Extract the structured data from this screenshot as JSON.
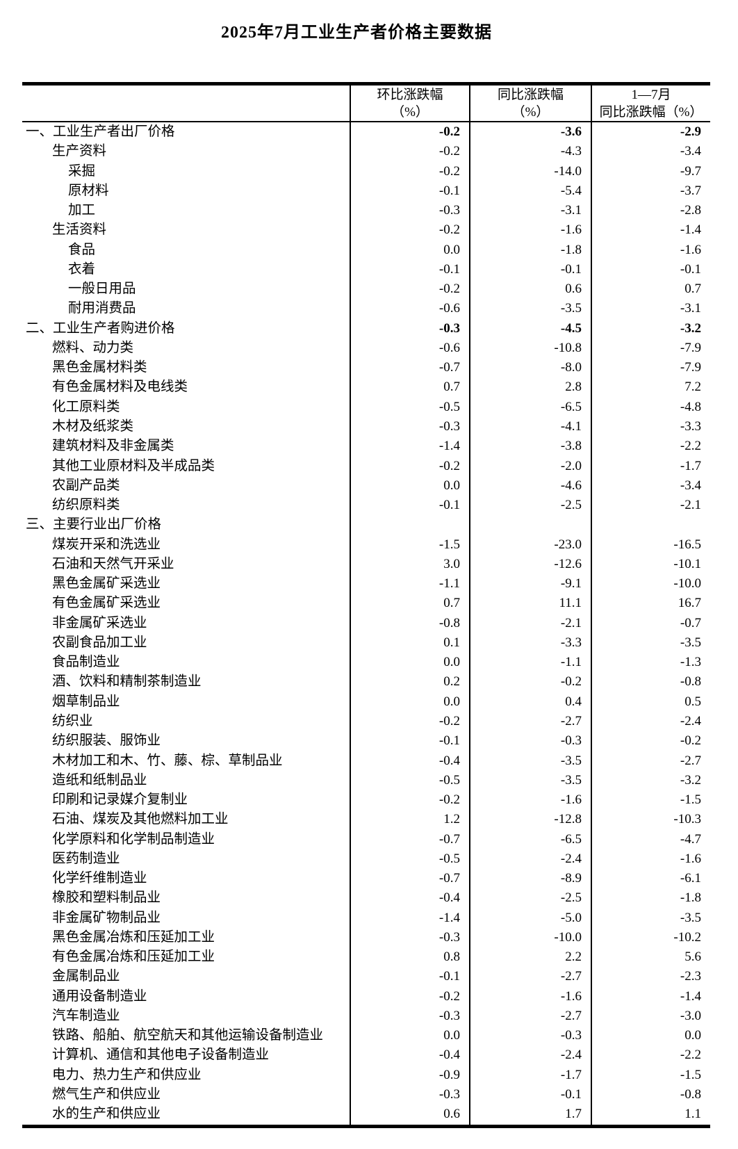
{
  "title": "2025年7月工业生产者价格主要数据",
  "table": {
    "header": {
      "col_mom_line1": "环比涨跌幅",
      "col_mom_line2": "（%）",
      "col_yoy_line1": "同比涨跌幅",
      "col_yoy_line2": "（%）",
      "col_ytd_line1": "1—7月",
      "col_ytd_line2": "同比涨跌幅（%）"
    },
    "rows": [
      {
        "label": "一、工业生产者出厂价格",
        "indent": 0,
        "bold": true,
        "mom": "-0.2",
        "yoy": "-3.6",
        "ytd": "-2.9"
      },
      {
        "label": "生产资料",
        "indent": 1,
        "bold": false,
        "mom": "-0.2",
        "yoy": "-4.3",
        "ytd": "-3.4"
      },
      {
        "label": "采掘",
        "indent": 2,
        "bold": false,
        "mom": "-0.2",
        "yoy": "-14.0",
        "ytd": "-9.7"
      },
      {
        "label": "原材料",
        "indent": 2,
        "bold": false,
        "mom": "-0.1",
        "yoy": "-5.4",
        "ytd": "-3.7"
      },
      {
        "label": "加工",
        "indent": 2,
        "bold": false,
        "mom": "-0.3",
        "yoy": "-3.1",
        "ytd": "-2.8"
      },
      {
        "label": "生活资料",
        "indent": 1,
        "bold": false,
        "mom": "-0.2",
        "yoy": "-1.6",
        "ytd": "-1.4"
      },
      {
        "label": "食品",
        "indent": 2,
        "bold": false,
        "mom": "0.0",
        "yoy": "-1.8",
        "ytd": "-1.6"
      },
      {
        "label": "衣着",
        "indent": 2,
        "bold": false,
        "mom": "-0.1",
        "yoy": "-0.1",
        "ytd": "-0.1"
      },
      {
        "label": "一般日用品",
        "indent": 2,
        "bold": false,
        "mom": "-0.2",
        "yoy": "0.6",
        "ytd": "0.7"
      },
      {
        "label": "耐用消费品",
        "indent": 2,
        "bold": false,
        "mom": "-0.6",
        "yoy": "-3.5",
        "ytd": "-3.1"
      },
      {
        "label": "二、工业生产者购进价格",
        "indent": 0,
        "bold": true,
        "mom": "-0.3",
        "yoy": "-4.5",
        "ytd": "-3.2"
      },
      {
        "label": "燃料、动力类",
        "indent": 1,
        "bold": false,
        "mom": "-0.6",
        "yoy": "-10.8",
        "ytd": "-7.9"
      },
      {
        "label": "黑色金属材料类",
        "indent": 1,
        "bold": false,
        "mom": "-0.7",
        "yoy": "-8.0",
        "ytd": "-7.9"
      },
      {
        "label": "有色金属材料及电线类",
        "indent": 1,
        "bold": false,
        "mom": "0.7",
        "yoy": "2.8",
        "ytd": "7.2"
      },
      {
        "label": "化工原料类",
        "indent": 1,
        "bold": false,
        "mom": "-0.5",
        "yoy": "-6.5",
        "ytd": "-4.8"
      },
      {
        "label": "木材及纸浆类",
        "indent": 1,
        "bold": false,
        "mom": "-0.3",
        "yoy": "-4.1",
        "ytd": "-3.3"
      },
      {
        "label": "建筑材料及非金属类",
        "indent": 1,
        "bold": false,
        "mom": "-1.4",
        "yoy": "-3.8",
        "ytd": "-2.2"
      },
      {
        "label": "其他工业原材料及半成品类",
        "indent": 1,
        "bold": false,
        "mom": "-0.2",
        "yoy": "-2.0",
        "ytd": "-1.7"
      },
      {
        "label": "农副产品类",
        "indent": 1,
        "bold": false,
        "mom": "0.0",
        "yoy": "-4.6",
        "ytd": "-3.4"
      },
      {
        "label": "纺织原料类",
        "indent": 1,
        "bold": false,
        "mom": "-0.1",
        "yoy": "-2.5",
        "ytd": "-2.1"
      },
      {
        "label": "三、主要行业出厂价格",
        "indent": 0,
        "bold": false,
        "mom": "",
        "yoy": "",
        "ytd": ""
      },
      {
        "label": "煤炭开采和洗选业",
        "indent": 1,
        "bold": false,
        "mom": "-1.5",
        "yoy": "-23.0",
        "ytd": "-16.5"
      },
      {
        "label": "石油和天然气开采业",
        "indent": 1,
        "bold": false,
        "mom": "3.0",
        "yoy": "-12.6",
        "ytd": "-10.1"
      },
      {
        "label": "黑色金属矿采选业",
        "indent": 1,
        "bold": false,
        "mom": "-1.1",
        "yoy": "-9.1",
        "ytd": "-10.0"
      },
      {
        "label": "有色金属矿采选业",
        "indent": 1,
        "bold": false,
        "mom": "0.7",
        "yoy": "11.1",
        "ytd": "16.7"
      },
      {
        "label": "非金属矿采选业",
        "indent": 1,
        "bold": false,
        "mom": "-0.8",
        "yoy": "-2.1",
        "ytd": "-0.7"
      },
      {
        "label": "农副食品加工业",
        "indent": 1,
        "bold": false,
        "mom": "0.1",
        "yoy": "-3.3",
        "ytd": "-3.5"
      },
      {
        "label": "食品制造业",
        "indent": 1,
        "bold": false,
        "mom": "0.0",
        "yoy": "-1.1",
        "ytd": "-1.3"
      },
      {
        "label": "酒、饮料和精制茶制造业",
        "indent": 1,
        "bold": false,
        "mom": "0.2",
        "yoy": "-0.2",
        "ytd": "-0.8"
      },
      {
        "label": "烟草制品业",
        "indent": 1,
        "bold": false,
        "mom": "0.0",
        "yoy": "0.4",
        "ytd": "0.5"
      },
      {
        "label": "纺织业",
        "indent": 1,
        "bold": false,
        "mom": "-0.2",
        "yoy": "-2.7",
        "ytd": "-2.4"
      },
      {
        "label": "纺织服装、服饰业",
        "indent": 1,
        "bold": false,
        "mom": "-0.1",
        "yoy": "-0.3",
        "ytd": "-0.2"
      },
      {
        "label": "木材加工和木、竹、藤、棕、草制品业",
        "indent": 1,
        "bold": false,
        "mom": "-0.4",
        "yoy": "-3.5",
        "ytd": "-2.7"
      },
      {
        "label": "造纸和纸制品业",
        "indent": 1,
        "bold": false,
        "mom": "-0.5",
        "yoy": "-3.5",
        "ytd": "-3.2"
      },
      {
        "label": "印刷和记录媒介复制业",
        "indent": 1,
        "bold": false,
        "mom": "-0.2",
        "yoy": "-1.6",
        "ytd": "-1.5"
      },
      {
        "label": "石油、煤炭及其他燃料加工业",
        "indent": 1,
        "bold": false,
        "mom": "1.2",
        "yoy": "-12.8",
        "ytd": "-10.3"
      },
      {
        "label": "化学原料和化学制品制造业",
        "indent": 1,
        "bold": false,
        "mom": "-0.7",
        "yoy": "-6.5",
        "ytd": "-4.7"
      },
      {
        "label": "医药制造业",
        "indent": 1,
        "bold": false,
        "mom": "-0.5",
        "yoy": "-2.4",
        "ytd": "-1.6"
      },
      {
        "label": "化学纤维制造业",
        "indent": 1,
        "bold": false,
        "mom": "-0.7",
        "yoy": "-8.9",
        "ytd": "-6.1"
      },
      {
        "label": "橡胶和塑料制品业",
        "indent": 1,
        "bold": false,
        "mom": "-0.4",
        "yoy": "-2.5",
        "ytd": "-1.8"
      },
      {
        "label": "非金属矿物制品业",
        "indent": 1,
        "bold": false,
        "mom": "-1.4",
        "yoy": "-5.0",
        "ytd": "-3.5"
      },
      {
        "label": "黑色金属冶炼和压延加工业",
        "indent": 1,
        "bold": false,
        "mom": "-0.3",
        "yoy": "-10.0",
        "ytd": "-10.2"
      },
      {
        "label": "有色金属冶炼和压延加工业",
        "indent": 1,
        "bold": false,
        "mom": "0.8",
        "yoy": "2.2",
        "ytd": "5.6"
      },
      {
        "label": "金属制品业",
        "indent": 1,
        "bold": false,
        "mom": "-0.1",
        "yoy": "-2.7",
        "ytd": "-2.3"
      },
      {
        "label": "通用设备制造业",
        "indent": 1,
        "bold": false,
        "mom": "-0.2",
        "yoy": "-1.6",
        "ytd": "-1.4"
      },
      {
        "label": "汽车制造业",
        "indent": 1,
        "bold": false,
        "mom": "-0.3",
        "yoy": "-2.7",
        "ytd": "-3.0"
      },
      {
        "label": "铁路、船舶、航空航天和其他运输设备制造业",
        "indent": 1,
        "bold": false,
        "mom": "0.0",
        "yoy": "-0.3",
        "ytd": "0.0"
      },
      {
        "label": "计算机、通信和其他电子设备制造业",
        "indent": 1,
        "bold": false,
        "mom": "-0.4",
        "yoy": "-2.4",
        "ytd": "-2.2"
      },
      {
        "label": "电力、热力生产和供应业",
        "indent": 1,
        "bold": false,
        "mom": "-0.9",
        "yoy": "-1.7",
        "ytd": "-1.5"
      },
      {
        "label": "燃气生产和供应业",
        "indent": 1,
        "bold": false,
        "mom": "-0.3",
        "yoy": "-0.1",
        "ytd": "-0.8"
      },
      {
        "label": "水的生产和供应业",
        "indent": 1,
        "bold": false,
        "mom": "0.6",
        "yoy": "1.7",
        "ytd": "1.1"
      }
    ]
  }
}
